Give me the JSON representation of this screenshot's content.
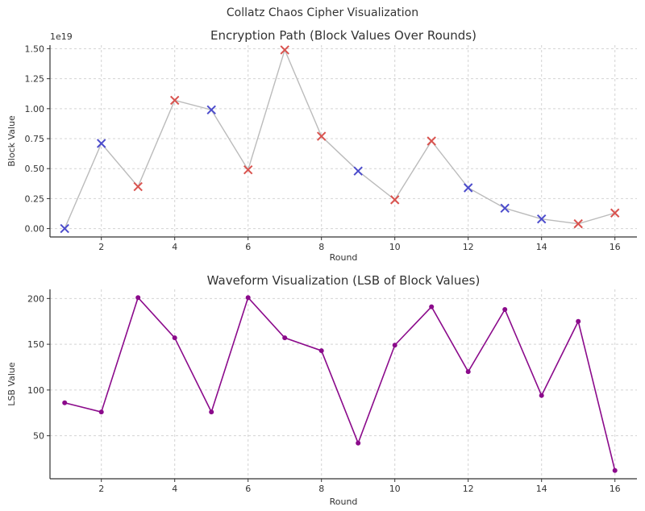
{
  "figure": {
    "suptitle": "Collatz Chaos Cipher Visualization"
  },
  "chart_data": [
    {
      "type": "line",
      "title": "Encryption Path (Block Values Over Rounds)",
      "xlabel": "Round",
      "ylabel": "Block Value",
      "y_scale_label": "1e19",
      "x": [
        1,
        2,
        3,
        4,
        5,
        6,
        7,
        8,
        9,
        10,
        11,
        12,
        13,
        14,
        15,
        16
      ],
      "values": [
        0.0,
        0.71,
        0.35,
        1.07,
        0.99,
        0.49,
        1.49,
        0.77,
        0.48,
        0.24,
        0.73,
        0.34,
        0.17,
        0.08,
        0.04,
        0.13
      ],
      "marker_colors": [
        "blue",
        "blue",
        "red",
        "red",
        "blue",
        "red",
        "red",
        "red",
        "blue",
        "red",
        "red",
        "blue",
        "blue",
        "blue",
        "red",
        "red"
      ],
      "xlim": [
        0.6,
        16.6
      ],
      "ylim": [
        -0.07,
        1.53
      ],
      "x_ticks": [
        2,
        4,
        6,
        8,
        10,
        12,
        14,
        16
      ],
      "y_ticks": [
        0.0,
        0.25,
        0.5,
        0.75,
        1.0,
        1.25,
        1.5
      ],
      "y_tick_labels": [
        "0.00",
        "0.25",
        "0.50",
        "0.75",
        "1.00",
        "1.25",
        "1.50"
      ],
      "grid": true,
      "marker": "x",
      "colors": {
        "line": "#bbbbbb",
        "blue": "#4c4ccc",
        "red": "#d9534f"
      }
    },
    {
      "type": "line",
      "title": "Waveform Visualization (LSB of Block Values)",
      "xlabel": "Round",
      "ylabel": "LSB Value",
      "x": [
        1,
        2,
        3,
        4,
        5,
        6,
        7,
        8,
        9,
        10,
        11,
        12,
        13,
        14,
        15,
        16
      ],
      "values": [
        86,
        76,
        201,
        157,
        76,
        201,
        157,
        143,
        42,
        149,
        191,
        120,
        188,
        94,
        175,
        12
      ],
      "xlim": [
        0.6,
        16.6
      ],
      "ylim": [
        3,
        210
      ],
      "x_ticks": [
        2,
        4,
        6,
        8,
        10,
        12,
        14,
        16
      ],
      "y_ticks": [
        50,
        100,
        150,
        200
      ],
      "y_tick_labels": [
        "50",
        "100",
        "150",
        "200"
      ],
      "grid": true,
      "marker": "o",
      "colors": {
        "line": "#8b0a8b"
      }
    }
  ]
}
